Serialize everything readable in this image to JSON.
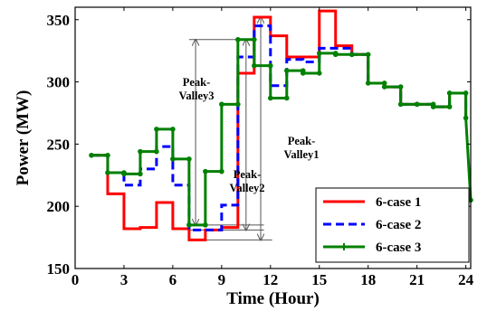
{
  "chart_data": {
    "type": "line",
    "step": true,
    "xlabel": "Time (Hour)",
    "ylabel": "Power (MW)",
    "xlim": [
      0,
      24.3
    ],
    "ylim": [
      150,
      360
    ],
    "xticks": [
      0,
      3,
      6,
      9,
      12,
      15,
      18,
      21,
      24
    ],
    "yticks": [
      150,
      200,
      250,
      300,
      350
    ],
    "grid": false,
    "legend_position": "bottom-right",
    "series": [
      {
        "name": "6-case 1",
        "color": "#ff0000",
        "style": "solid",
        "marker": "none",
        "x": [
          1,
          2,
          3,
          4,
          5,
          6,
          7,
          8,
          9,
          10,
          11,
          12,
          13,
          14,
          15,
          16,
          17,
          18,
          19,
          20,
          21,
          22,
          23,
          24
        ],
        "values": [
          241,
          210,
          182,
          183,
          203,
          182,
          173,
          181,
          183,
          307,
          352,
          337,
          320,
          320,
          357,
          329,
          322,
          299,
          296,
          282,
          282,
          280,
          291,
          271
        ]
      },
      {
        "name": "6-case 2",
        "color": "#0000ff",
        "style": "dashed",
        "marker": "none",
        "x": [
          1,
          2,
          3,
          4,
          5,
          6,
          7,
          8,
          9,
          10,
          11,
          12,
          13,
          14,
          15,
          16,
          17,
          18,
          19,
          20,
          21,
          22,
          23,
          24
        ],
        "values": [
          241,
          227,
          217,
          230,
          248,
          217,
          181,
          181,
          201,
          320,
          345,
          297,
          318,
          316,
          327,
          327,
          322,
          299,
          296,
          282,
          282,
          280,
          291,
          271
        ]
      },
      {
        "name": "6-case 3",
        "color": "#008000",
        "style": "solid",
        "marker": "dot",
        "x": [
          1,
          2,
          3,
          4,
          5,
          6,
          7,
          8,
          9,
          10,
          11,
          12,
          13,
          14,
          15,
          16,
          17,
          18,
          19,
          20,
          21,
          22,
          23,
          24
        ],
        "values": [
          241,
          227,
          226,
          244,
          262,
          238,
          185,
          228,
          282,
          334,
          313,
          287,
          309,
          307,
          323,
          322,
          322,
          299,
          296,
          282,
          282,
          280,
          291,
          271
        ],
        "tail": [
          24.3,
          205
        ]
      }
    ],
    "annotations": [
      {
        "text_lines": [
          "Peak-",
          "Valley3"
        ],
        "from": [
          7.4,
          185
        ],
        "to": [
          7.4,
          334
        ],
        "kind": "double-arrow"
      },
      {
        "text_lines": [
          "Peak-",
          "Valley2"
        ],
        "from": [
          10.5,
          181
        ],
        "to": [
          10.5,
          334
        ],
        "kind": "double-arrow"
      },
      {
        "text_lines": [
          "Peak-",
          "Valley1"
        ],
        "from": [
          11.4,
          173
        ],
        "to": [
          11.4,
          352
        ],
        "kind": "double-arrow"
      }
    ]
  }
}
